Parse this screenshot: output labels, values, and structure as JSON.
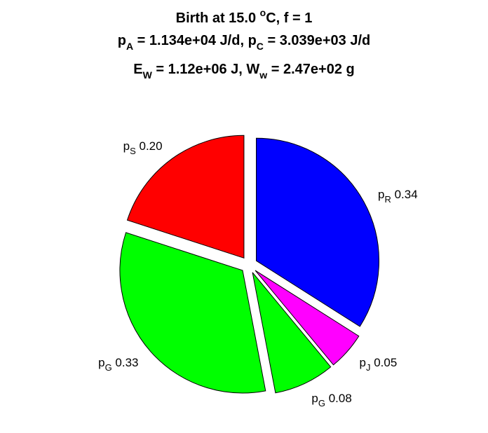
{
  "chart_data": {
    "type": "pie",
    "title": {
      "line1": {
        "pre": "Birth at 15.0 ",
        "deg": "o",
        "post": "C, f = 1"
      },
      "line2": {
        "a_main": "p",
        "a_sub": "A",
        "a_val": " = 1.134e+04 J/d, ",
        "c_main": "p",
        "c_sub": "C",
        "c_val": " = 3.039e+03 J/d"
      },
      "line3": {
        "e_main": "E",
        "e_sub": "W",
        "e_val": " = 1.12e+06 J, ",
        "w_main": "W",
        "w_sub": "w",
        "w_val": " = 2.47e+02 g"
      }
    },
    "slices": [
      {
        "name": "p",
        "sub": "R",
        "value": 0.34,
        "label": "0.34",
        "color": "#0000ff"
      },
      {
        "name": "p",
        "sub": "J",
        "value": 0.05,
        "label": "0.05",
        "color": "#ff00ff"
      },
      {
        "name": "p",
        "sub": "G",
        "value": 0.08,
        "label": "0.08",
        "color": "#00ff00"
      },
      {
        "name": "p",
        "sub": "G",
        "value": 0.33,
        "label": "0.33",
        "color": "#00ff00"
      },
      {
        "name": "p",
        "sub": "S",
        "value": 0.2,
        "label": "0.20",
        "color": "#ff0000"
      }
    ],
    "start": "12 o'clock",
    "direction": "clockwise",
    "exploded": true,
    "legend": "none"
  }
}
